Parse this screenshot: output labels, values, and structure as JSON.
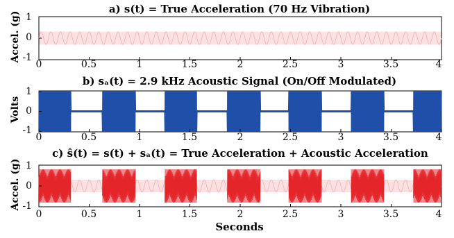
{
  "chart_data": [
    {
      "type": "line",
      "panel": "a",
      "title": "a) s(t) = True Acceleration (70 Hz Vibration)",
      "ylabel": "Accel. (g)",
      "xlim": [
        0,
        4
      ],
      "ylim": [
        -1,
        1
      ],
      "x_ticks": [
        "0",
        "0.5",
        "1",
        "1.5",
        "2",
        "2.5",
        "3",
        "3.5",
        "4"
      ],
      "y_ticks": [
        "1",
        "0",
        "-1"
      ],
      "series": [
        {
          "frequency_hz": 70,
          "amplitude": 0.3,
          "color": "#f4a8ab",
          "on_off": false
        }
      ]
    },
    {
      "type": "line",
      "panel": "b",
      "title": "b) sₐ(t) = 2.9 kHz Acoustic Signal (On/Off Modulated)",
      "ylabel": "Volts",
      "xlim": [
        0,
        4
      ],
      "ylim": [
        -1,
        1
      ],
      "x_ticks": [
        "0",
        "0.5",
        "1",
        "1.5",
        "2",
        "2.5",
        "3",
        "3.5",
        "4"
      ],
      "y_ticks": [
        "1",
        "0",
        "-1"
      ],
      "series": [
        {
          "frequency_hz": 2900,
          "amplitude": 1.0,
          "color": "#1f4fa8",
          "on_off": true,
          "on_intervals": [
            [
              0.0,
              0.32
            ],
            [
              0.63,
              0.96
            ],
            [
              1.25,
              1.57
            ],
            [
              1.87,
              2.2
            ],
            [
              2.48,
              2.81
            ],
            [
              3.1,
              3.43
            ],
            [
              3.72,
              4.0
            ]
          ]
        }
      ]
    },
    {
      "type": "line",
      "panel": "c",
      "title": "c) ŝ(t) = s(t) + sₐ(t) = True Acceleration + Acoustic Acceleration",
      "ylabel": "Accel. (g)",
      "xlabel": "Seconds",
      "xlim": [
        0,
        4
      ],
      "ylim": [
        -1,
        1
      ],
      "x_ticks": [
        "0",
        "0.5",
        "1",
        "1.5",
        "2",
        "2.5",
        "3",
        "3.5",
        "4"
      ],
      "y_ticks": [
        "1",
        "0",
        "-1"
      ],
      "series": [
        {
          "frequency_hz": 70,
          "amplitude": 0.3,
          "color": "#f4a8ab",
          "on_off": false
        },
        {
          "frequency_hz": 2900,
          "amplitude": 0.8,
          "color": "#e4262b",
          "on_off": true,
          "on_intervals": [
            [
              0.0,
              0.32
            ],
            [
              0.63,
              0.96
            ],
            [
              1.25,
              1.57
            ],
            [
              1.87,
              2.2
            ],
            [
              2.48,
              2.81
            ],
            [
              3.1,
              3.43
            ],
            [
              3.72,
              4.0
            ]
          ]
        }
      ]
    }
  ]
}
